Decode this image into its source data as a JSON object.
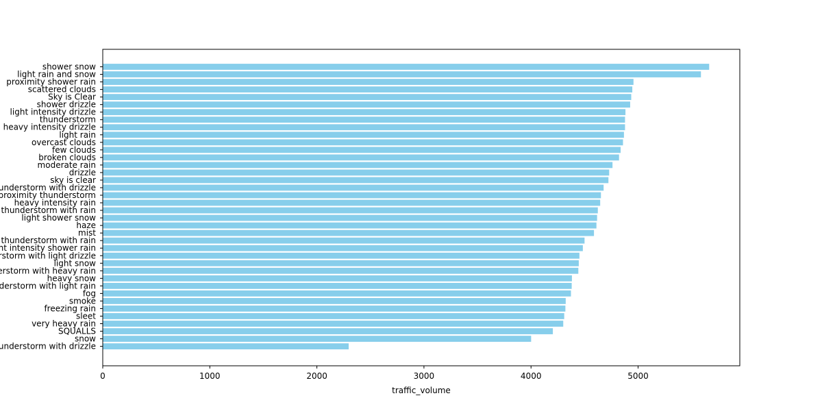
{
  "chart_data": {
    "type": "bar",
    "orientation": "horizontal",
    "title": "",
    "xlabel": "traffic_volume",
    "ylabel": "",
    "xlim": [
      0,
      5950
    ],
    "x_ticks": [
      0,
      1000,
      2000,
      3000,
      4000,
      5000
    ],
    "grid": false,
    "bar_color": "#87ceeb",
    "categories": [
      "shower snow",
      "light rain and snow",
      "proximity shower rain",
      "scattered clouds",
      "Sky is Clear",
      "shower drizzle",
      "light intensity drizzle",
      "thunderstorm",
      "heavy intensity drizzle",
      "light rain",
      "overcast clouds",
      "few clouds",
      "broken clouds",
      "moderate rain",
      "drizzle",
      "sky is clear",
      "thunderstorm with drizzle",
      "proximity thunderstorm",
      "heavy intensity rain",
      "proximity thunderstorm with rain",
      "light shower snow",
      "haze",
      "mist",
      "thunderstorm with rain",
      "light intensity shower rain",
      "thunderstorm with light drizzle",
      "light snow",
      "thunderstorm with heavy rain",
      "heavy snow",
      "thunderstorm with light rain",
      "fog",
      "smoke",
      "freezing rain",
      "sleet",
      "very heavy rain",
      "SQUALLS",
      "snow",
      "thunderstorm with drizzle"
    ],
    "values": [
      5664,
      5587,
      4957,
      4946,
      4936,
      4926,
      4882,
      4878,
      4878,
      4868,
      4859,
      4837,
      4822,
      4761,
      4730,
      4723,
      4678,
      4653,
      4646,
      4624,
      4617,
      4611,
      4588,
      4500,
      4484,
      4452,
      4446,
      4442,
      4382,
      4380,
      4373,
      4324,
      4321,
      4310,
      4301,
      4204,
      4001,
      2297
    ]
  }
}
